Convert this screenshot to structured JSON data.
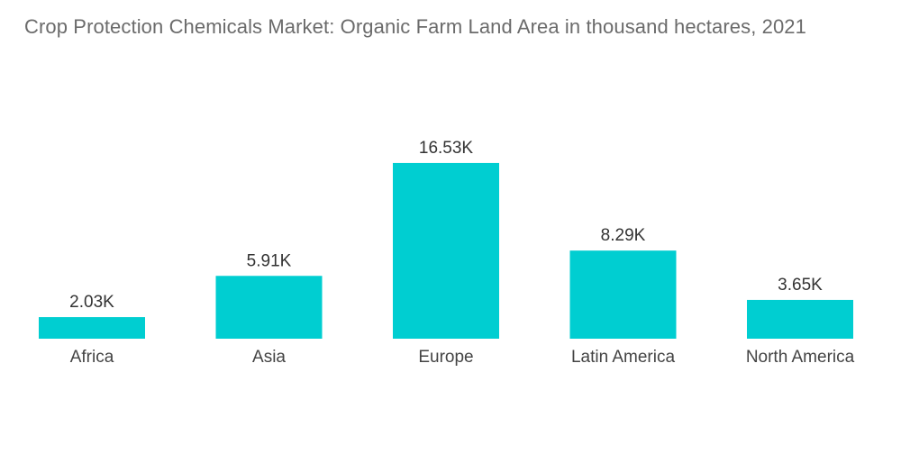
{
  "chart_data": {
    "type": "bar",
    "title": "Crop Protection Chemicals Market: Organic Farm Land Area in thousand hectares, 2021",
    "categories": [
      "Africa",
      "Asia",
      "Europe",
      "Latin America",
      "North America"
    ],
    "values": [
      2.03,
      5.91,
      16.53,
      8.29,
      3.65
    ],
    "value_labels": [
      "2.03K",
      "5.91K",
      "16.53K",
      "8.29K",
      "3.65K"
    ],
    "ylim": [
      0,
      18
    ],
    "grid": false,
    "legend": "none",
    "colors": {
      "bar": "#00ced1"
    }
  }
}
